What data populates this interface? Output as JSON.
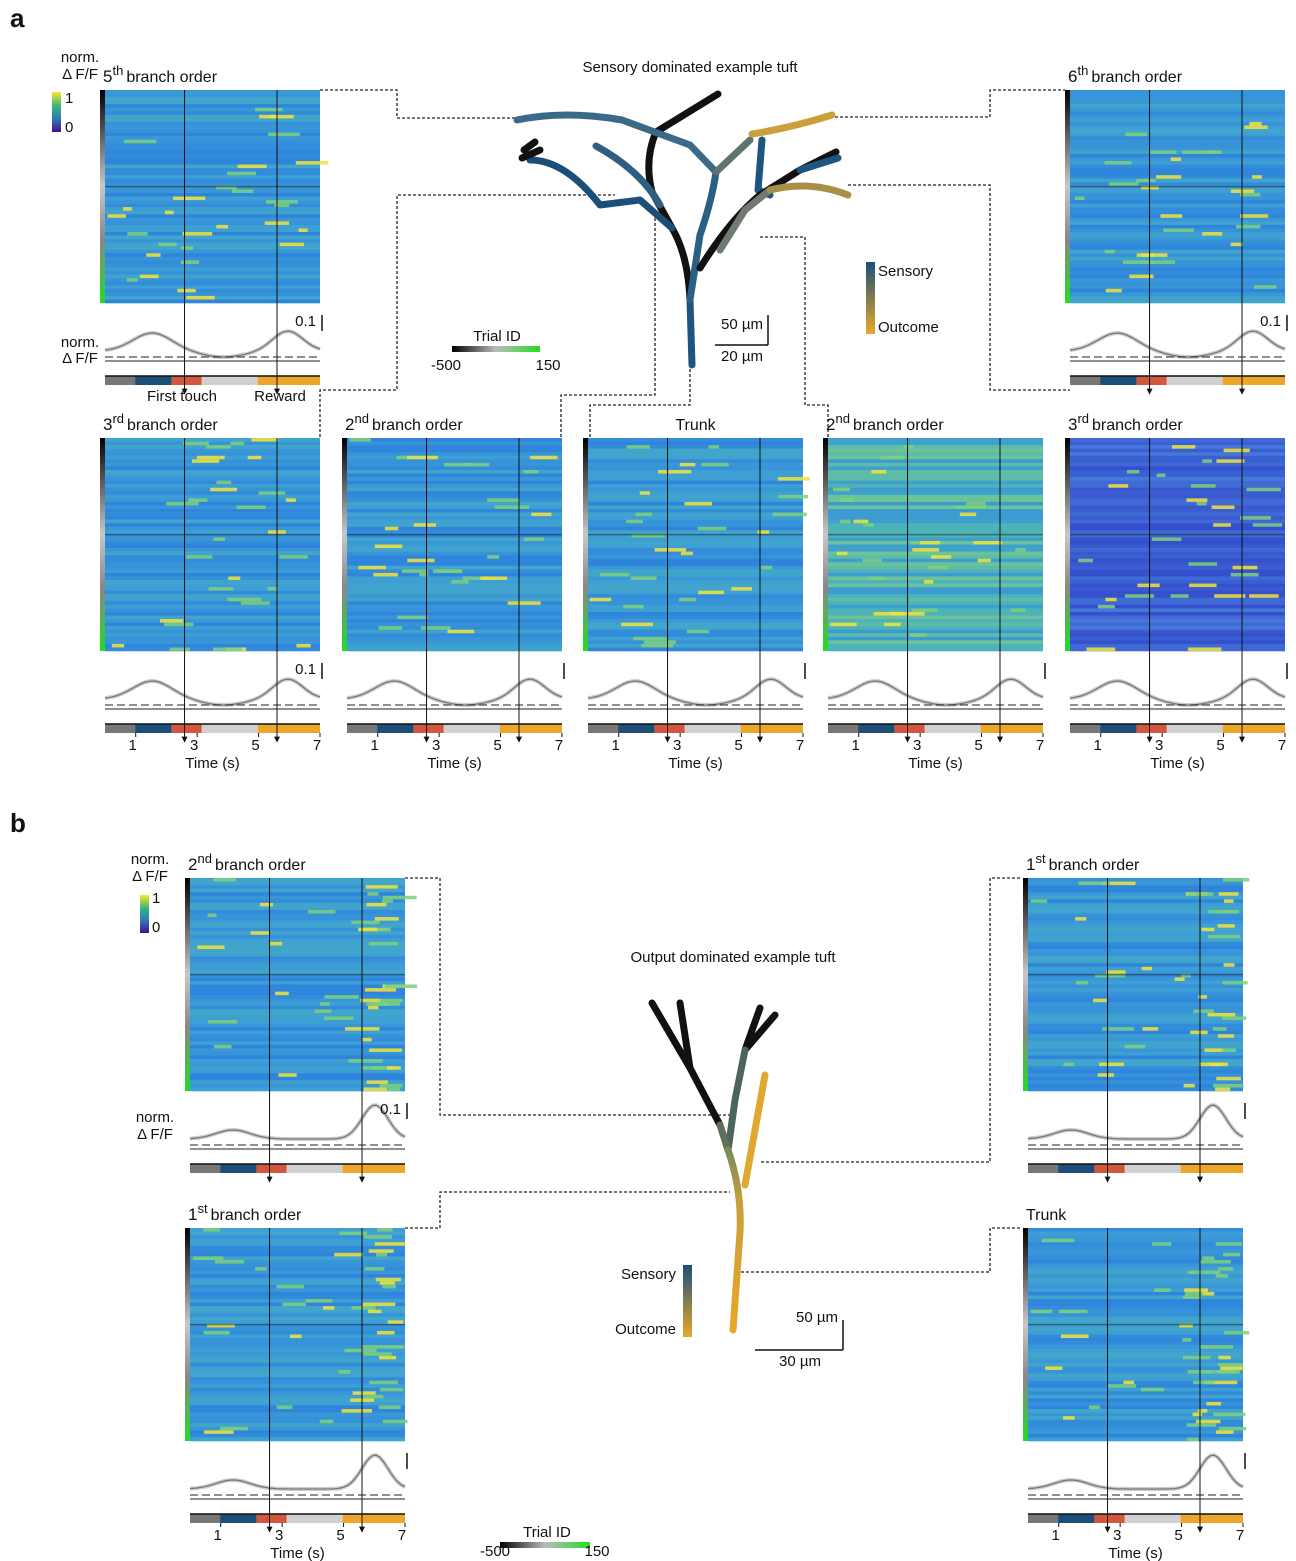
{
  "a": {
    "label": "a",
    "cbar": {
      "line1": "norm.",
      "line2": "Δ F/F",
      "max": "1",
      "min": "0"
    },
    "title": "Sensory dominated example tuft",
    "trial": {
      "label": "Trial ID",
      "min": "-500",
      "max": "150"
    },
    "scale": {
      "y": "50 µm",
      "x": "20 µm"
    },
    "legend": {
      "top": "Sensory",
      "bottom": "Outcome"
    },
    "trace_label": {
      "line1": "norm.",
      "line2": "Δ F/F"
    },
    "events": {
      "first": "First touch",
      "second": "Reward"
    },
    "tiles": [
      {
        "order": "5",
        "sup": "th",
        "name": "branch order",
        "scale_label": "0.1"
      },
      {
        "order": "6",
        "sup": "th",
        "name": "branch order",
        "scale_label": "0.1"
      },
      {
        "order": "3",
        "sup": "rd",
        "name": "branch order",
        "scale_label": "0.1",
        "xlim": [
          0,
          7
        ],
        "xticks": [
          1,
          3,
          5,
          7
        ],
        "xlabel": "Time (s)"
      },
      {
        "order": "2",
        "sup": "nd",
        "name": "branch order",
        "xlim": [
          0,
          7
        ],
        "xticks": [
          1,
          3,
          5,
          7
        ],
        "xlabel": "Time (s)"
      },
      {
        "name": "Trunk",
        "xlim": [
          0,
          7
        ],
        "xticks": [
          1,
          3,
          5,
          7
        ],
        "xlabel": "Time (s)"
      },
      {
        "order": "2",
        "sup": "nd",
        "name": "branch order",
        "xlim": [
          0,
          7
        ],
        "xticks": [
          1,
          3,
          5,
          7
        ],
        "xlabel": "Time (s)"
      },
      {
        "order": "3",
        "sup": "rd",
        "name": "branch order",
        "xlim": [
          0,
          7
        ],
        "xticks": [
          1,
          3,
          5,
          7
        ],
        "xlabel": "Time (s)"
      }
    ]
  },
  "b": {
    "label": "b",
    "cbar": {
      "line1": "norm.",
      "line2": "Δ F/F",
      "max": "1",
      "min": "0"
    },
    "title": "Output dominated example tuft",
    "trial": {
      "label": "Trial ID",
      "min": "-500",
      "max": "150"
    },
    "scale": {
      "y": "50 µm",
      "x": "30 µm"
    },
    "legend": {
      "top": "Sensory",
      "bottom": "Outcome"
    },
    "trace_label": {
      "line1": "norm.",
      "line2": "Δ F/F"
    },
    "tiles": [
      {
        "order": "2",
        "sup": "nd",
        "name": "branch order",
        "scale_label": "0.1"
      },
      {
        "order": "1",
        "sup": "st",
        "name": "branch order"
      },
      {
        "order": "1",
        "sup": "st",
        "name": "branch order",
        "xlim": [
          0,
          7
        ],
        "xticks": [
          1,
          3,
          5,
          7
        ],
        "xlabel": "Time (s)"
      },
      {
        "name": "Trunk",
        "xlim": [
          0,
          7
        ],
        "xticks": [
          1,
          3,
          5,
          7
        ],
        "xlabel": "Time (s)"
      }
    ]
  }
}
